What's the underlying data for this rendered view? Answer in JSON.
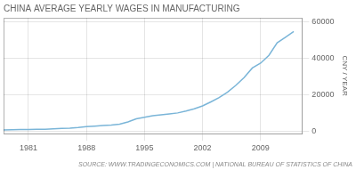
{
  "chart_data": {
    "type": "line",
    "title": "CHINA AVERAGE YEARLY WAGES IN MANUFACTURING",
    "y_label": "CNY / YEAR",
    "annotations": [
      "SOURCE: WWW.TRADINGECONOMICS.COM | NATIONAL BUREAU OF STATISTICS OF CHINA"
    ],
    "x": [
      1978,
      1979,
      1980,
      1981,
      1982,
      1983,
      1984,
      1985,
      1986,
      1987,
      1988,
      1989,
      1990,
      1991,
      1992,
      1993,
      1994,
      1995,
      1996,
      1997,
      1998,
      1999,
      2000,
      2001,
      2002,
      2003,
      2004,
      2005,
      2006,
      2007,
      2008,
      2009,
      2010,
      2011,
      2012,
      2013
    ],
    "values": [
      597,
      665,
      762,
      812,
      876,
      967,
      1120,
      1344,
      1524,
      1878,
      2374,
      2632,
      2987,
      3268,
      3739,
      4951,
      6678,
      7463,
      8314,
      8789,
      9331,
      9875,
      10956,
      12164,
      13712,
      15921,
      18245,
      21214,
      24932,
      29229,
      34493,
      37147,
      41418,
      48293,
      51369,
      54479
    ],
    "color": "#7ab5d8",
    "xlim": [
      1978,
      2014
    ],
    "xticks": [
      1981,
      1988,
      1995,
      2002,
      2009
    ],
    "ylim": [
      -1500,
      62000
    ],
    "yticks": [
      0,
      20000,
      40000,
      60000
    ],
    "grid": true
  }
}
